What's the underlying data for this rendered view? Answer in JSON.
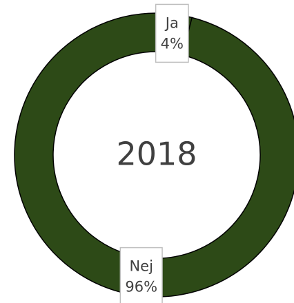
{
  "chart_data": {
    "type": "donut",
    "center_text": "2018",
    "categories": [
      "Ja",
      "Nej"
    ],
    "values": [
      4,
      96
    ],
    "value_labels": [
      "4%",
      "96%"
    ],
    "color": "#2d4a17"
  }
}
